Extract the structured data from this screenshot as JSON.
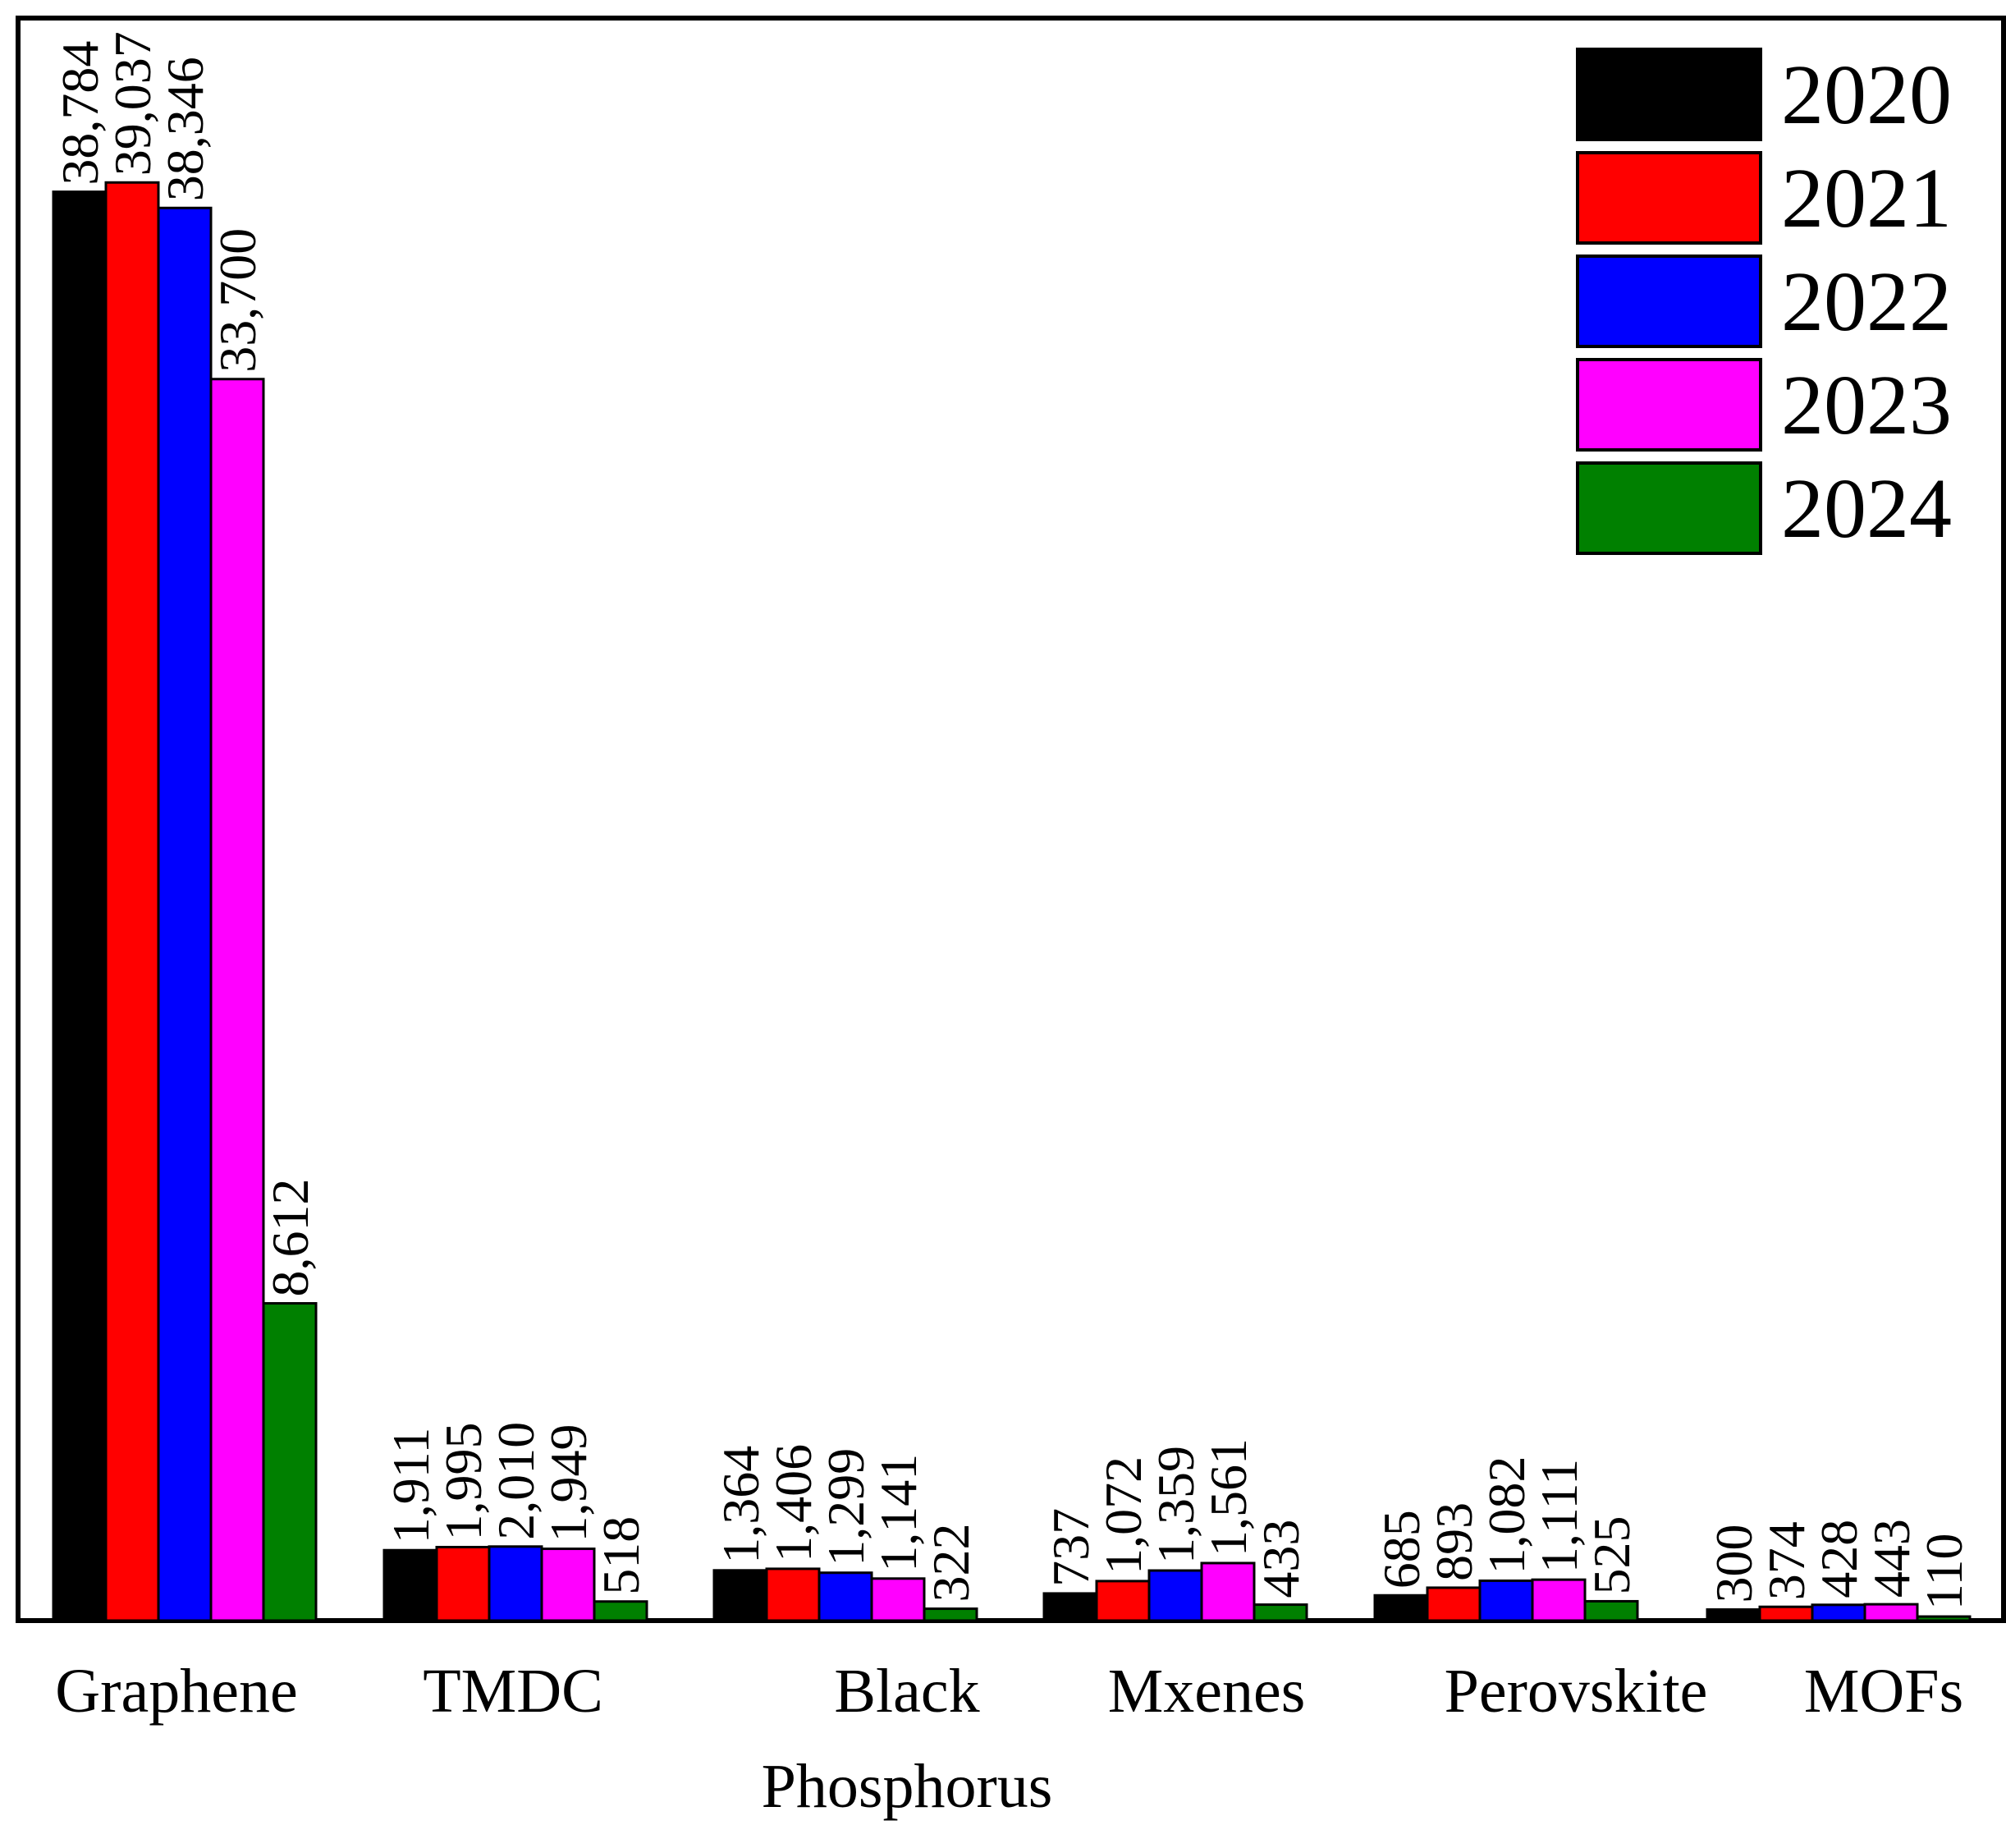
{
  "chart_data": {
    "type": "bar",
    "title": "",
    "xlabel": "",
    "ylabel": "",
    "ylim": [
      0,
      43500
    ],
    "grid": false,
    "legend_position": "top-right",
    "categories": [
      "Graphene",
      "TMDC",
      "Black Phosphorus",
      "Mxenes",
      "Perovskite",
      "MOFs"
    ],
    "category_label_lines": [
      [
        "Graphene"
      ],
      [
        "TMDC"
      ],
      [
        "Black",
        "Phosphorus"
      ],
      [
        "Mxenes"
      ],
      [
        "Perovskite"
      ],
      [
        "MOFs"
      ]
    ],
    "series": [
      {
        "name": "2020",
        "color": "#000000",
        "values": [
          38784,
          1911,
          1364,
          737,
          685,
          300
        ],
        "labels": [
          "38,784",
          "1,911",
          "1,364",
          "737",
          "685",
          "300"
        ]
      },
      {
        "name": "2021",
        "color": "#ff0000",
        "values": [
          39037,
          1995,
          1406,
          1072,
          893,
          374
        ],
        "labels": [
          "39,037",
          "1,995",
          "1,406",
          "1,072",
          "893",
          "374"
        ]
      },
      {
        "name": "2022",
        "color": "#0000ff",
        "values": [
          38346,
          2010,
          1299,
          1359,
          1082,
          428
        ],
        "labels": [
          "38,346",
          "2,010",
          "1,299",
          "1,359",
          "1,082",
          "428"
        ]
      },
      {
        "name": "2023",
        "color": "#ff00ff",
        "values": [
          33700,
          1949,
          1141,
          1561,
          1111,
          443
        ],
        "labels": [
          "33,700",
          "1,949",
          "1,141",
          "1,561",
          "1,111",
          "443"
        ]
      },
      {
        "name": "2024",
        "color": "#008000",
        "values": [
          8612,
          518,
          322,
          433,
          525,
          110
        ],
        "labels": [
          "8,612",
          "518",
          "322",
          "433",
          "525",
          "110"
        ]
      }
    ]
  }
}
